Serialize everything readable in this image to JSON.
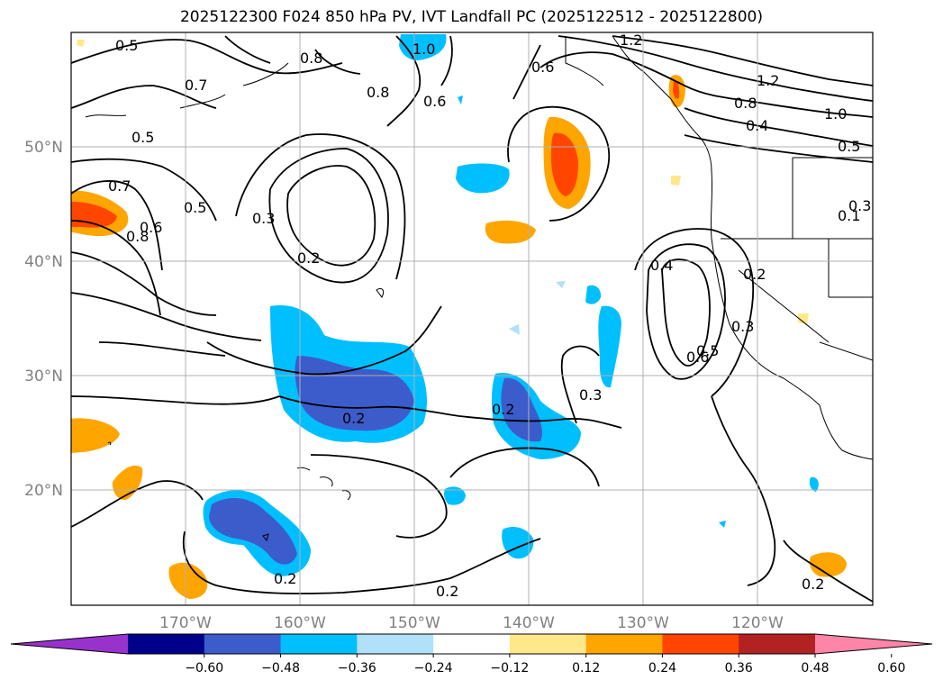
{
  "title": "2025122300 F024 850 hPa PV, IVT Landfall PC (2025122512 - 2025122800)",
  "map": {
    "lon_labels": [
      "170°W",
      "160°W",
      "150°W",
      "140°W",
      "130°W",
      "120°W"
    ],
    "lat_labels": [
      "50°N",
      "40°N",
      "30°N",
      "20°N"
    ],
    "contour_labels": [
      "0.5",
      "0.8",
      "1.0",
      "1.2",
      "0.7",
      "0.5",
      "0.8",
      "0.6",
      "0.6",
      "1.2",
      "0.8",
      "0.4",
      "1.0",
      "0.5",
      "0.3",
      "0.2",
      "0.7",
      "0.6",
      "0.8",
      "0.5",
      "0.4",
      "0.2",
      "0.3",
      "0.6",
      "0.5",
      "0.3",
      "0.2",
      "0.2",
      "0.2",
      "0.2",
      "0.2",
      "0.3",
      "0.1"
    ]
  },
  "colorbar": {
    "ticks": [
      "−0.60",
      "−0.48",
      "−0.36",
      "−0.24",
      "−0.12",
      "0.12",
      "0.24",
      "0.36",
      "0.48",
      "0.60"
    ],
    "colors": [
      "#9932cc",
      "#00008b",
      "#3c5ccc",
      "#00bfff",
      "#b0e0fa",
      "#ffffff",
      "#ffe88a",
      "#ffa500",
      "#ff4500",
      "#b22222",
      "#ff85a8"
    ]
  }
}
